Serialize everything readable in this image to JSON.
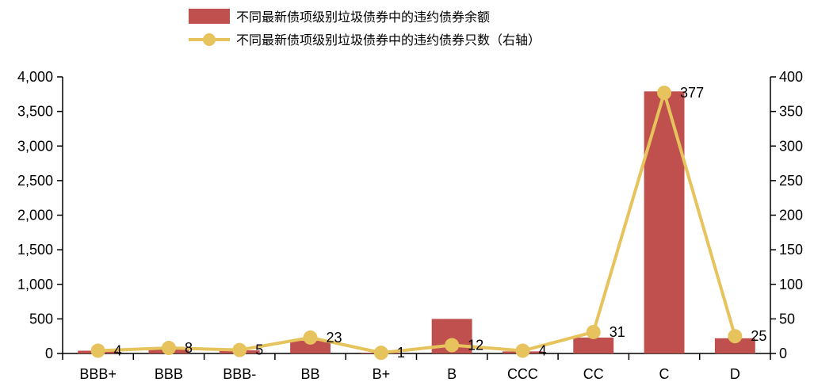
{
  "chart_data": {
    "type": "bar",
    "categories": [
      "BBB+",
      "BBB",
      "BBB-",
      "BB",
      "B+",
      "B",
      "CCC",
      "CC",
      "C",
      "D"
    ],
    "series": [
      {
        "name": "不同最新债项级别垃圾债券中的违约债券余额",
        "type": "bar",
        "axis": "left",
        "color": "#C0504D",
        "values": [
          40,
          65,
          45,
          185,
          10,
          500,
          30,
          230,
          3790,
          220
        ]
      },
      {
        "name": "不同最新债项级别垃圾债券中的违约债券只数（右轴）",
        "type": "line",
        "axis": "right",
        "color": "#E6C35C",
        "values": [
          4,
          8,
          5,
          23,
          1,
          12,
          4,
          31,
          377,
          25
        ],
        "labels": [
          "4",
          "8",
          "5",
          "23",
          "1",
          "12",
          "4",
          "31",
          "377",
          "25"
        ]
      }
    ],
    "y_left": {
      "ylim": [
        0,
        4000
      ],
      "ticks": [
        0,
        500,
        1000,
        1500,
        2000,
        2500,
        3000,
        3500,
        4000
      ],
      "tick_labels": [
        "0",
        "500",
        "1,000",
        "1,500",
        "2,000",
        "2,500",
        "3,000",
        "3,500",
        "4,000"
      ]
    },
    "y_right": {
      "ylim": [
        0,
        400
      ],
      "ticks": [
        0,
        50,
        100,
        150,
        200,
        250,
        300,
        350,
        400
      ],
      "tick_labels": [
        "0",
        "50",
        "100",
        "150",
        "200",
        "250",
        "300",
        "350",
        "400"
      ]
    },
    "legend_position": "top-center",
    "grid": false
  }
}
